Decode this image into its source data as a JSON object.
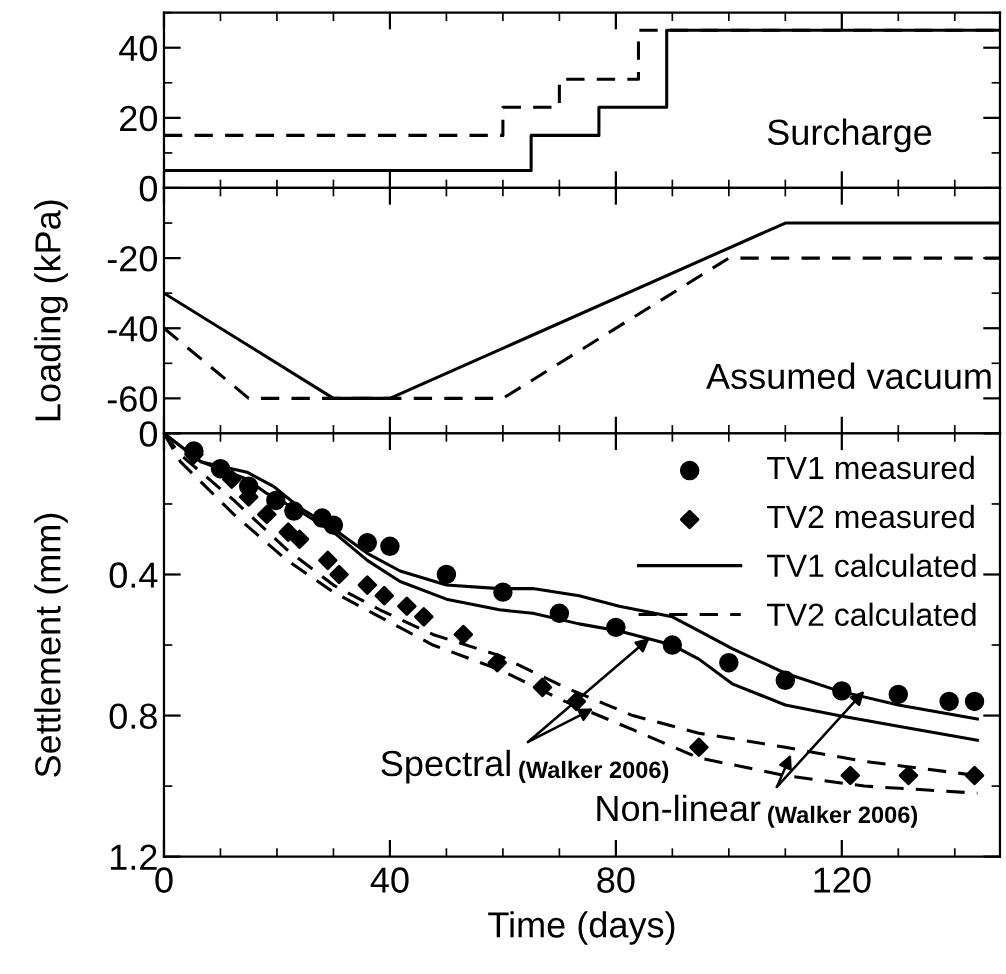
{
  "chart_data": [
    {
      "type": "step",
      "ylabel": "Loading (kPa)",
      "xlim": [
        0,
        148
      ],
      "xticks": [
        0,
        40,
        80,
        120
      ],
      "ylim": [
        0,
        50
      ],
      "yticks": [
        0,
        20,
        40
      ],
      "tick_labels": "y",
      "grid": false,
      "legend": false,
      "annotations": [
        "Surcharge"
      ],
      "series": [
        {
          "color": "#000000",
          "line_style": "solid",
          "x": [
            0,
            65,
            77,
            89,
            148
          ],
          "values": [
            5,
            15,
            23,
            45,
            45
          ]
        },
        {
          "color": "#000000",
          "line_style": "dashed",
          "x": [
            0,
            60,
            70,
            84,
            148
          ],
          "values": [
            15,
            23,
            31,
            45,
            45
          ]
        }
      ]
    },
    {
      "type": "line",
      "xlim": [
        0,
        148
      ],
      "xticks": [
        0,
        40,
        80,
        120
      ],
      "ylim": [
        -70,
        0
      ],
      "yticks": [
        -60,
        -40,
        -20
      ],
      "tick_labels": "y",
      "grid": false,
      "legend": false,
      "annotations": [
        "Assumed vacuum"
      ],
      "series": [
        {
          "color": "#000000",
          "line_style": "solid",
          "x": [
            0,
            30,
            40,
            110,
            148
          ],
          "values": [
            -30,
            -60,
            -60,
            -10,
            -10
          ]
        },
        {
          "color": "#000000",
          "line_style": "dashed",
          "x": [
            0,
            15,
            60,
            100,
            148
          ],
          "values": [
            -40,
            -60,
            -60,
            -20,
            -20
          ]
        }
      ]
    },
    {
      "type": "line",
      "xlabel": "Time (days)",
      "ylabel": "Settlement (mm)",
      "xlim": [
        0,
        148
      ],
      "xticks": [
        0,
        40,
        80,
        120
      ],
      "ylim": [
        1.2,
        0
      ],
      "yticks": [
        0,
        0.4,
        0.8,
        1.2
      ],
      "grid": false,
      "legend": "top right",
      "annotations": [
        {
          "text": "Spectral",
          "x": 86,
          "y": 0.58
        },
        {
          "text": "(Walker 2006)",
          "x": 76,
          "y": 0.78
        },
        {
          "text": "Non-linear",
          "x": 124,
          "y": 0.73
        },
        {
          "text": "(Walker 2006)",
          "x": 111,
          "y": 0.91
        }
      ],
      "series": [
        {
          "name": "TV1 measured",
          "type": "scatter",
          "marker": "circle",
          "color": "#000000",
          "x": [
            5.3,
            10,
            15,
            19.8,
            23,
            28,
            30,
            36,
            40,
            50,
            60,
            70,
            80,
            90,
            100,
            110,
            120,
            130,
            139,
            143.5
          ],
          "values": [
            0.05,
            0.1,
            0.15,
            0.19,
            0.22,
            0.24,
            0.26,
            0.31,
            0.32,
            0.4,
            0.45,
            0.51,
            0.55,
            0.6,
            0.65,
            0.7,
            0.73,
            0.74,
            0.76,
            0.76
          ]
        },
        {
          "name": "TV2 measured",
          "type": "scatter",
          "marker": "diamond",
          "color": "#000000",
          "x": [
            5.3,
            12,
            15,
            18.2,
            22,
            24,
            29,
            31,
            36,
            39,
            43,
            46,
            53,
            59,
            67,
            73,
            94.7,
            121.5,
            131.8,
            143.5
          ],
          "values": [
            0.06,
            0.13,
            0.18,
            0.23,
            0.28,
            0.3,
            0.36,
            0.4,
            0.43,
            0.46,
            0.49,
            0.52,
            0.57,
            0.65,
            0.72,
            0.76,
            0.89,
            0.97,
            0.97,
            0.97
          ]
        },
        {
          "name": "TV1 calculated",
          "color": "#000000",
          "line_style": "solid",
          "x": [
            0,
            6.5,
            14.7,
            19.4,
            24,
            30,
            36,
            41.8,
            50,
            59.4,
            65.3,
            73.5,
            80.6,
            90,
            94.7,
            100.6,
            110,
            119.4,
            130,
            144
          ],
          "values": [
            0,
            0.08,
            0.11,
            0.15,
            0.21,
            0.27,
            0.34,
            0.39,
            0.43,
            0.44,
            0.44,
            0.46,
            0.49,
            0.52,
            0.56,
            0.61,
            0.68,
            0.73,
            0.77,
            0.81
          ]
        },
        {
          "color": "#000000",
          "line_style": "solid",
          "x": [
            0,
            6.5,
            14.7,
            18.2,
            24,
            30,
            36,
            41.8,
            50,
            59.4,
            65.3,
            73.5,
            80.6,
            90,
            94.7,
            100.6,
            110,
            119.4,
            130,
            144
          ],
          "values": [
            0,
            0.08,
            0.13,
            0.17,
            0.22,
            0.28,
            0.36,
            0.42,
            0.47,
            0.5,
            0.51,
            0.54,
            0.56,
            0.6,
            0.64,
            0.71,
            0.77,
            0.8,
            0.83,
            0.87
          ]
        },
        {
          "name": "TV2 calculated",
          "color": "#000000",
          "line_style": "dashed",
          "x": [
            0,
            2.9,
            12.4,
            21.8,
            30,
            38.2,
            47.6,
            59.4,
            71,
            83,
            94.7,
            110,
            124,
            144
          ],
          "values": [
            0,
            0.06,
            0.19,
            0.33,
            0.43,
            0.5,
            0.57,
            0.63,
            0.72,
            0.8,
            0.85,
            0.89,
            0.93,
            0.97
          ]
        },
        {
          "color": "#000000",
          "line_style": "dashed",
          "x": [
            0,
            2.9,
            12.4,
            21.8,
            30,
            38.2,
            47.6,
            59.4,
            71,
            83,
            94.7,
            110,
            124,
            144
          ],
          "values": [
            0,
            0.08,
            0.23,
            0.36,
            0.45,
            0.52,
            0.6,
            0.67,
            0.76,
            0.84,
            0.92,
            0.97,
            1.0,
            1.02
          ]
        }
      ]
    }
  ]
}
